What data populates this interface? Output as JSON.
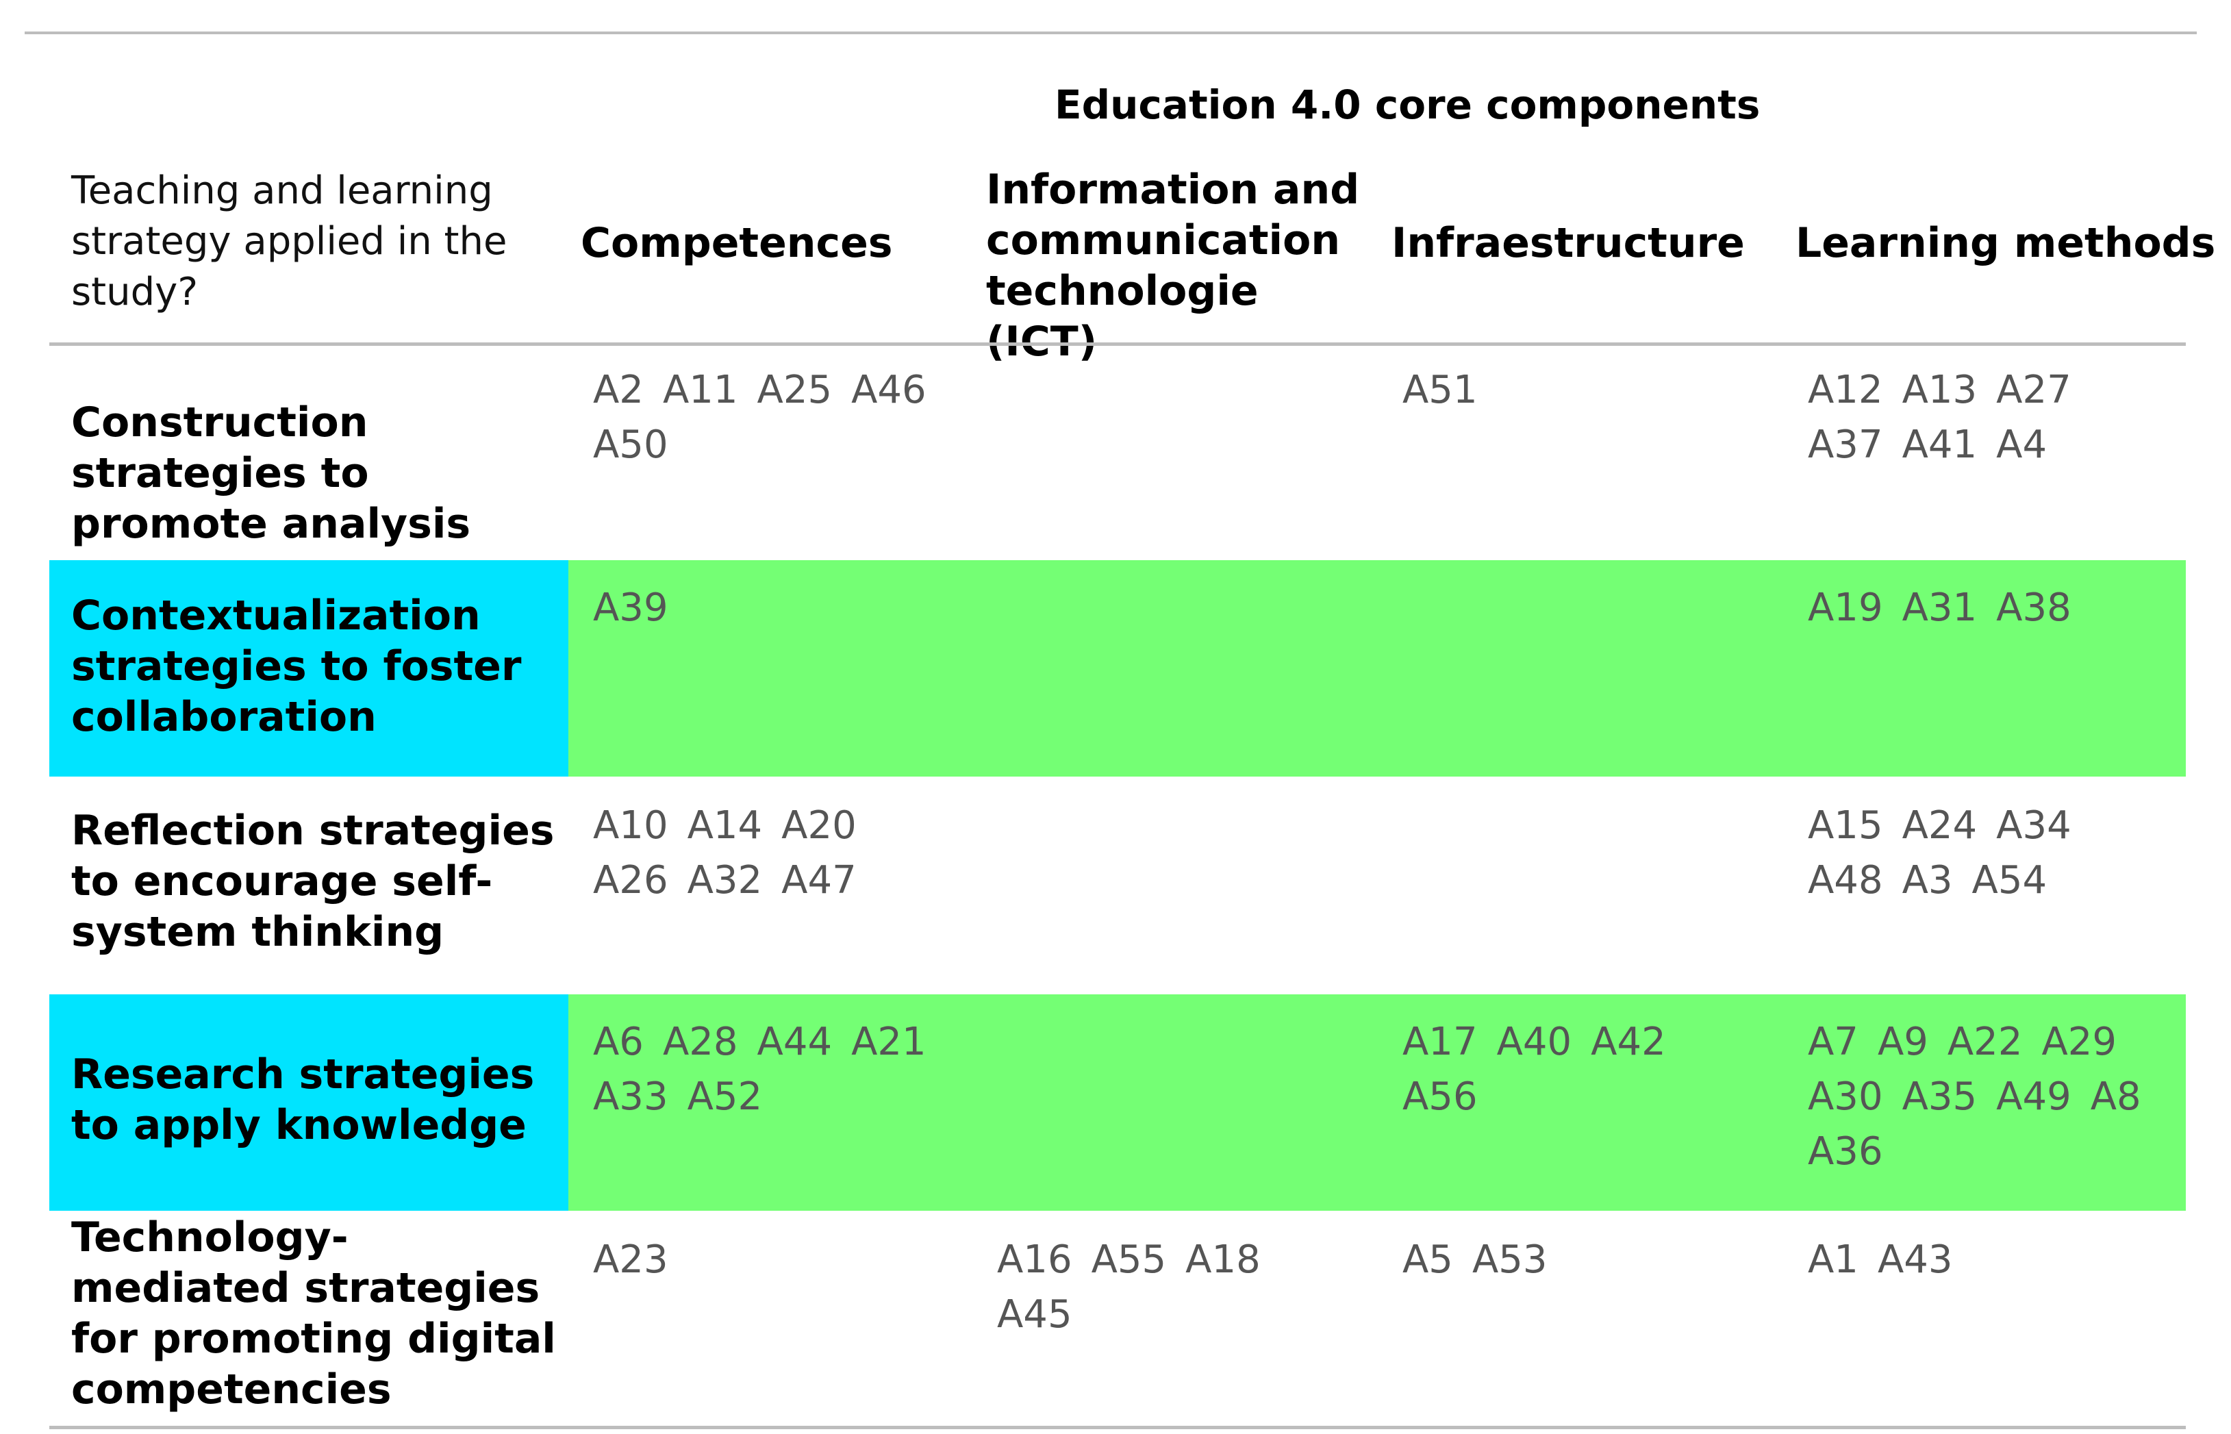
{
  "header": {
    "group_title": "Education 4.0 core components",
    "row_header": "Teaching and learning strategy applied in the study?",
    "columns": [
      "Competences",
      "Information and communication technologie (ICT)",
      "Infraestructure",
      "Learning methods"
    ]
  },
  "rows": [
    {
      "strategy": "Construction strategies to promote analysis",
      "highlighted": false,
      "cells": [
        [
          "A2",
          "A11",
          "A25",
          "A46",
          "A50"
        ],
        [],
        [
          "A51"
        ],
        [
          "A12",
          "A13",
          "A27",
          "A37",
          "A41",
          "A4"
        ]
      ]
    },
    {
      "strategy": "Contextualization strategies to foster collaboration",
      "highlighted": true,
      "cells": [
        [
          "A39"
        ],
        [],
        [],
        [
          "A19",
          "A31",
          "A38"
        ]
      ]
    },
    {
      "strategy": "Reflection strategies to encourage self-system thinking",
      "highlighted": false,
      "cells": [
        [
          "A10",
          "A14",
          "A20",
          "A26",
          "A32",
          "A47"
        ],
        [],
        [],
        [
          "A15",
          "A24",
          "A34",
          "A48",
          "A3",
          "A54"
        ]
      ]
    },
    {
      "strategy": "Research strategies to apply knowledge",
      "highlighted": true,
      "cells": [
        [
          "A6",
          "A28",
          "A44",
          "A21",
          "A33",
          "A52"
        ],
        [],
        [
          "A17",
          "A40",
          "A42",
          "A56"
        ],
        [
          "A7",
          "A9",
          "A22",
          "A29",
          "A30",
          "A35",
          "A49",
          "A8",
          "A36"
        ]
      ]
    },
    {
      "strategy": "Technology-mediated strategies for promoting digital competencies",
      "highlighted": false,
      "cells": [
        [
          "A23"
        ],
        [
          "A16",
          "A55",
          "A18",
          "A45"
        ],
        [
          "A5",
          "A53"
        ],
        [
          "A1",
          "A43"
        ]
      ]
    }
  ],
  "colors": {
    "row_highlight": "#74ff74",
    "label_highlight": "#00e4ff",
    "reference_text": "#555555",
    "rule": "#bdbdbd"
  }
}
